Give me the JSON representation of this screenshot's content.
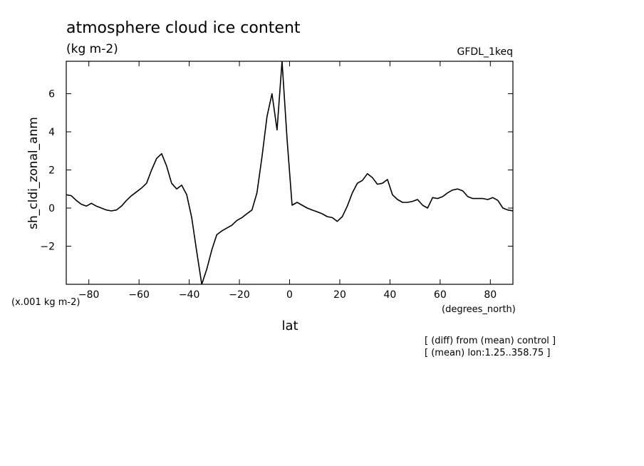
{
  "title": "atmosphere cloud ice content",
  "units": "(kg m-2)",
  "model": "GFDL_1keq",
  "scale_note": "(x.001 kg m-2)",
  "x_units": "(degrees_north)",
  "notes": [
    "[ (diff) from (mean) control ]",
    "[ (mean) lon:1.25..358.75 ]"
  ],
  "chart_data": {
    "type": "line",
    "xlabel": "lat",
    "ylabel": "sh_cldi_zonal_anm",
    "xlim": [
      -89,
      89
    ],
    "ylim": [
      -4,
      7.7
    ],
    "xticks": [
      -80,
      -60,
      -40,
      -20,
      0,
      20,
      40,
      60,
      80
    ],
    "yticks": [
      -2,
      0,
      2,
      4,
      6
    ],
    "grid": false,
    "series": [
      {
        "x": [
          -89,
          -87,
          -85,
          -83,
          -81,
          -79,
          -77,
          -75,
          -73,
          -71,
          -69,
          -67,
          -65,
          -63,
          -61,
          -59,
          -57,
          -55,
          -53,
          -51,
          -49,
          -47,
          -45,
          -43,
          -41,
          -39,
          -37,
          -35,
          -33,
          -31,
          -29,
          -27,
          -25,
          -23,
          -21,
          -19,
          -17,
          -15,
          -13,
          -11,
          -9,
          -7,
          -5,
          -3,
          -1,
          1,
          3,
          5,
          7,
          9,
          11,
          13,
          15,
          17,
          19,
          21,
          23,
          25,
          27,
          29,
          31,
          33,
          35,
          37,
          39,
          41,
          43,
          45,
          47,
          49,
          51,
          53,
          55,
          57,
          59,
          61,
          63,
          65,
          67,
          69,
          71,
          73,
          75,
          77,
          79,
          81,
          83,
          85,
          87,
          89
        ],
        "y": [
          0.7,
          0.65,
          0.4,
          0.2,
          0.1,
          0.25,
          0.1,
          0.0,
          -0.1,
          -0.15,
          -0.1,
          0.1,
          0.4,
          0.65,
          0.85,
          1.05,
          1.3,
          2.0,
          2.6,
          2.85,
          2.2,
          1.3,
          1.0,
          1.2,
          0.7,
          -0.5,
          -2.3,
          -4.0,
          -3.2,
          -2.2,
          -1.4,
          -1.2,
          -1.05,
          -0.9,
          -0.65,
          -0.5,
          -0.3,
          -0.1,
          0.8,
          2.7,
          4.8,
          6.0,
          4.1,
          7.7,
          3.6,
          0.15,
          0.3,
          0.15,
          0.0,
          -0.1,
          -0.2,
          -0.3,
          -0.45,
          -0.5,
          -0.7,
          -0.45,
          0.1,
          0.8,
          1.3,
          1.45,
          1.8,
          1.6,
          1.25,
          1.3,
          1.5,
          0.7,
          0.45,
          0.3,
          0.3,
          0.35,
          0.45,
          0.15,
          0.0,
          0.55,
          0.5,
          0.6,
          0.8,
          0.95,
          1.0,
          0.9,
          0.6,
          0.5,
          0.5,
          0.5,
          0.45,
          0.55,
          0.4,
          0.0,
          -0.1,
          -0.15
        ]
      }
    ]
  }
}
